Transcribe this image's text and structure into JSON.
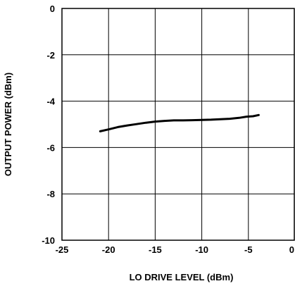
{
  "chart_data": {
    "type": "line",
    "title": "",
    "xlabel": "LO DRIVE LEVEL (dBm)",
    "ylabel": "OUTPUT POWER (dBm)",
    "xlim": [
      -25,
      0
    ],
    "ylim": [
      -10,
      0
    ],
    "x_ticks": [
      -25,
      -20,
      -15,
      -10,
      -5,
      0
    ],
    "y_ticks": [
      0,
      -2,
      -4,
      -6,
      -8,
      -10
    ],
    "x_tick_labels": [
      "-25",
      "-20",
      "-15",
      "-10",
      "-5",
      "0"
    ],
    "y_tick_labels": [
      "0",
      "-2",
      "-4",
      "-6",
      "-8",
      "-10"
    ],
    "grid": true,
    "series": [
      {
        "x": [
          -20.9,
          -20,
          -19,
          -18,
          -17,
          -16,
          -15,
          -14,
          -13,
          -12,
          -11,
          -10,
          -9,
          -8,
          -7,
          -6,
          -5.2,
          -4.5,
          -3.9
        ],
        "y": [
          -5.3,
          -5.22,
          -5.12,
          -5.05,
          -4.99,
          -4.93,
          -4.88,
          -4.85,
          -4.83,
          -4.83,
          -4.82,
          -4.81,
          -4.8,
          -4.78,
          -4.76,
          -4.72,
          -4.67,
          -4.65,
          -4.6
        ],
        "color": "#000000"
      }
    ]
  }
}
